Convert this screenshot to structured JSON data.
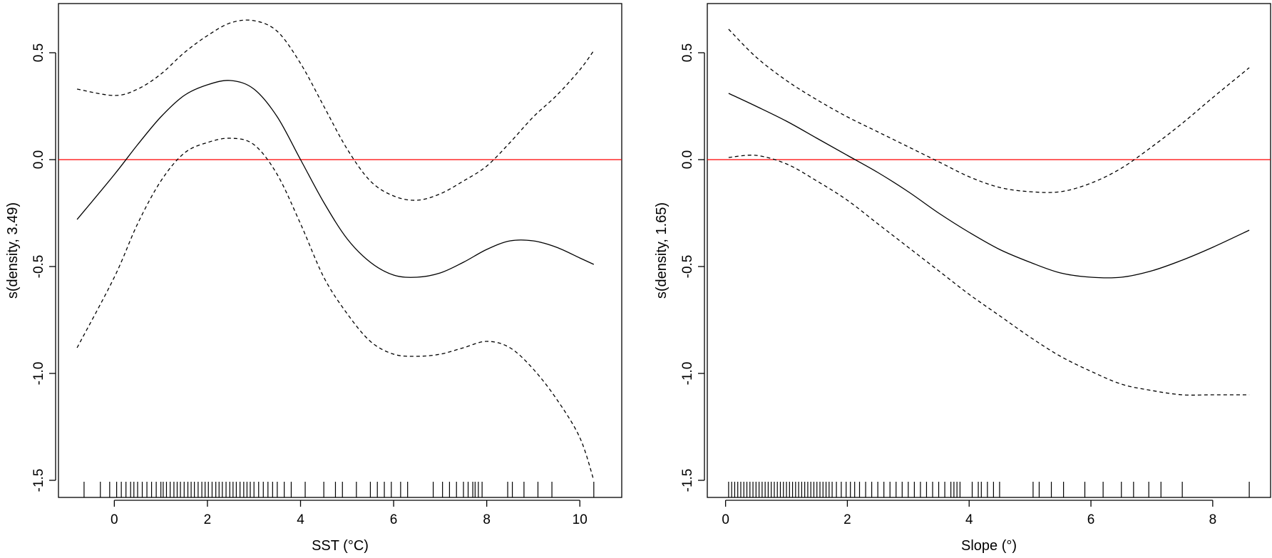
{
  "chart_data": [
    {
      "type": "line",
      "xlabel": "SST (°C)",
      "ylabel": "s(density, 3.49)",
      "xlim": [
        -1.2,
        10.9
      ],
      "ylim": [
        -1.58,
        0.73
      ],
      "x_ticks": [
        0,
        2,
        4,
        6,
        8,
        10
      ],
      "y_ticks": [
        -1.5,
        -1.0,
        -0.5,
        0.0,
        0.5
      ],
      "x_tick_labels": [
        "0",
        "2",
        "4",
        "6",
        "8",
        "10"
      ],
      "y_tick_labels": [
        "-1.5",
        "-1.0",
        "-0.5",
        "0.0",
        "0.5"
      ],
      "grid": false,
      "reference_line": {
        "y": 0,
        "color": "#ff0000"
      },
      "x": [
        -0.8,
        0,
        0.5,
        1,
        1.5,
        2,
        2.5,
        3,
        3.5,
        4,
        4.5,
        5,
        5.5,
        6,
        6.5,
        7,
        7.5,
        8,
        8.5,
        9,
        9.5,
        10,
        10.3
      ],
      "series": [
        {
          "style": "solid",
          "values": [
            -0.28,
            -0.07,
            0.07,
            0.2,
            0.3,
            0.35,
            0.37,
            0.33,
            0.2,
            0.0,
            -0.2,
            -0.37,
            -0.48,
            -0.54,
            -0.55,
            -0.53,
            -0.48,
            -0.42,
            -0.38,
            -0.38,
            -0.41,
            -0.46,
            -0.49
          ]
        },
        {
          "style": "dashed",
          "values": [
            0.33,
            0.3,
            0.33,
            0.4,
            0.5,
            0.58,
            0.64,
            0.65,
            0.6,
            0.45,
            0.25,
            0.05,
            -0.1,
            -0.17,
            -0.19,
            -0.16,
            -0.1,
            -0.03,
            0.08,
            0.2,
            0.3,
            0.42,
            0.51
          ]
        },
        {
          "style": "dashed",
          "values": [
            -0.88,
            -0.55,
            -0.3,
            -0.1,
            0.03,
            0.08,
            0.1,
            0.07,
            -0.07,
            -0.3,
            -0.55,
            -0.72,
            -0.85,
            -0.91,
            -0.92,
            -0.91,
            -0.88,
            -0.85,
            -0.88,
            -0.98,
            -1.12,
            -1.3,
            -1.5
          ]
        }
      ],
      "rug": [
        -0.65,
        -0.3,
        -0.1,
        0.05,
        0.15,
        0.25,
        0.35,
        0.42,
        0.5,
        0.6,
        0.7,
        0.8,
        0.9,
        1.0,
        1.05,
        1.12,
        1.2,
        1.28,
        1.35,
        1.42,
        1.5,
        1.58,
        1.65,
        1.72,
        1.8,
        1.88,
        1.95,
        2.02,
        2.1,
        2.18,
        2.25,
        2.32,
        2.4,
        2.48,
        2.55,
        2.62,
        2.7,
        2.78,
        2.85,
        2.92,
        3.0,
        3.1,
        3.2,
        3.3,
        3.4,
        3.5,
        3.65,
        3.8,
        4.1,
        4.5,
        4.75,
        4.9,
        5.2,
        5.5,
        5.65,
        5.8,
        5.95,
        6.15,
        6.3,
        6.85,
        7.05,
        7.2,
        7.35,
        7.5,
        7.6,
        7.7,
        7.75,
        7.82,
        7.9,
        8.45,
        8.55,
        8.8,
        9.1,
        9.4,
        10.3
      ]
    },
    {
      "type": "line",
      "xlabel": "Slope (°)",
      "ylabel": "s(density, 1.65)",
      "xlim": [
        -0.3,
        8.95
      ],
      "ylim": [
        -1.58,
        0.73
      ],
      "x_ticks": [
        0,
        2,
        4,
        6,
        8
      ],
      "y_ticks": [
        -1.5,
        -1.0,
        -0.5,
        0.0,
        0.5
      ],
      "x_tick_labels": [
        "0",
        "2",
        "4",
        "6",
        "8"
      ],
      "y_tick_labels": [
        "-1.5",
        "-1.0",
        "-0.5",
        "0.0",
        "0.5"
      ],
      "grid": false,
      "reference_line": {
        "y": 0,
        "color": "#ff0000"
      },
      "x": [
        0.05,
        0.5,
        1,
        1.5,
        2,
        2.5,
        3,
        3.5,
        4,
        4.5,
        5,
        5.5,
        6,
        6.5,
        7,
        7.5,
        8,
        8.6
      ],
      "series": [
        {
          "style": "solid",
          "values": [
            0.31,
            0.25,
            0.18,
            0.1,
            0.02,
            -0.06,
            -0.15,
            -0.25,
            -0.34,
            -0.42,
            -0.48,
            -0.53,
            -0.55,
            -0.55,
            -0.52,
            -0.47,
            -0.41,
            -0.33
          ]
        },
        {
          "style": "dashed",
          "values": [
            0.61,
            0.48,
            0.37,
            0.28,
            0.2,
            0.13,
            0.06,
            -0.01,
            -0.08,
            -0.13,
            -0.15,
            -0.15,
            -0.11,
            -0.04,
            0.06,
            0.17,
            0.29,
            0.43
          ]
        },
        {
          "style": "dashed",
          "values": [
            0.01,
            0.02,
            -0.02,
            -0.1,
            -0.19,
            -0.3,
            -0.41,
            -0.52,
            -0.63,
            -0.73,
            -0.83,
            -0.92,
            -0.99,
            -1.05,
            -1.08,
            -1.1,
            -1.1,
            -1.1
          ]
        }
      ],
      "rug": [
        0.05,
        0.1,
        0.15,
        0.2,
        0.25,
        0.3,
        0.35,
        0.4,
        0.45,
        0.5,
        0.55,
        0.6,
        0.65,
        0.7,
        0.75,
        0.8,
        0.85,
        0.9,
        0.95,
        1.0,
        1.05,
        1.1,
        1.15,
        1.2,
        1.25,
        1.3,
        1.35,
        1.4,
        1.45,
        1.5,
        1.55,
        1.6,
        1.65,
        1.7,
        1.75,
        1.82,
        1.9,
        1.98,
        2.05,
        2.12,
        2.2,
        2.3,
        2.4,
        2.5,
        2.6,
        2.7,
        2.8,
        2.9,
        3.0,
        3.1,
        3.2,
        3.3,
        3.4,
        3.5,
        3.6,
        3.7,
        3.75,
        3.8,
        3.85,
        4.05,
        4.15,
        4.2,
        4.3,
        4.4,
        4.5,
        5.05,
        5.15,
        5.35,
        5.55,
        5.9,
        6.2,
        6.5,
        6.7,
        6.95,
        7.15,
        7.5,
        8.6
      ]
    }
  ]
}
